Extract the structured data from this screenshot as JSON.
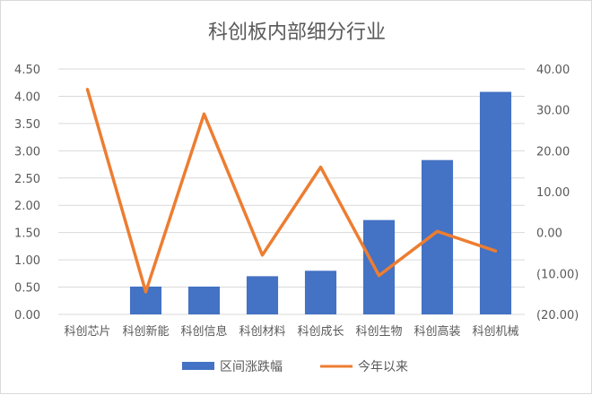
{
  "chart_data": {
    "type": "bar+line",
    "title": "科创板内部细分行业",
    "categories": [
      "科创芯片",
      "科创新能",
      "科创信息",
      "科创材料",
      "科创成长",
      "科创生物",
      "科创高装",
      "科创机械"
    ],
    "series": [
      {
        "name": "区间涨跌幅",
        "type": "bar",
        "axis": "left",
        "color": "#4472C4",
        "values": [
          0.0,
          0.51,
          0.51,
          0.7,
          0.8,
          1.73,
          2.83,
          4.08
        ]
      },
      {
        "name": "今年以来",
        "type": "line",
        "axis": "right",
        "color": "#ED7D31",
        "values": [
          35.0,
          -14.5,
          29.0,
          -5.5,
          16.0,
          -10.5,
          0.3,
          -4.5
        ]
      }
    ],
    "left_axis": {
      "min": 0,
      "max": 4.5,
      "ticks": [
        "0.00",
        "0.50",
        "1.00",
        "1.50",
        "2.00",
        "2.50",
        "3.00",
        "3.50",
        "4.00",
        "4.50"
      ]
    },
    "right_axis": {
      "min": -20,
      "max": 40,
      "ticks": [
        {
          "label": "(20.00)",
          "value": -20,
          "color": "#C00000"
        },
        {
          "label": "(10.00)",
          "value": -10,
          "color": "#C00000"
        },
        {
          "label": "0.00",
          "value": 0,
          "color": "#595959"
        },
        {
          "label": "10.00",
          "value": 10,
          "color": "#595959"
        },
        {
          "label": "20.00",
          "value": 20,
          "color": "#595959"
        },
        {
          "label": "30.00",
          "value": 30,
          "color": "#595959"
        },
        {
          "label": "40.00",
          "value": 40,
          "color": "#595959"
        }
      ]
    },
    "grid": true,
    "grid_color": "#d9d9d9",
    "legend": "bottom"
  }
}
